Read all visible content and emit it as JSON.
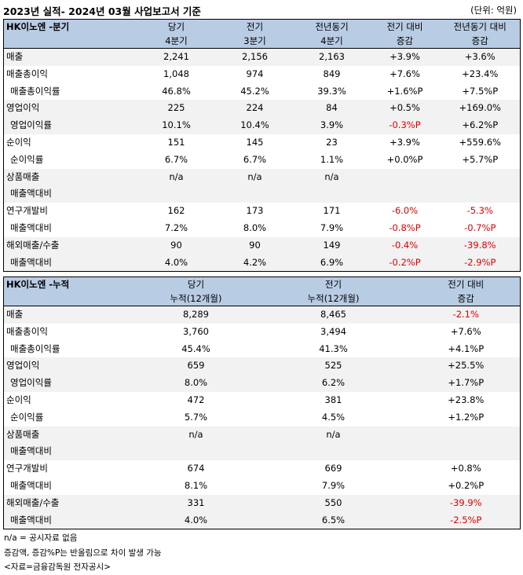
{
  "header": {
    "title": "2023년 실적- 2024년 03월 사업보고서 기준",
    "unit": "(단위: 억원)"
  },
  "quarterly": {
    "label": "HK이노엔 -분기",
    "columns": [
      {
        "line1": "당기",
        "line2": "4분기"
      },
      {
        "line1": "전기",
        "line2": "3분기"
      },
      {
        "line1": "전년동기",
        "line2": "4분기"
      },
      {
        "line1": "전기 대비",
        "line2": "증감"
      },
      {
        "line1": "전년동기 대비",
        "line2": "증감"
      }
    ],
    "rows": [
      {
        "label": "매출",
        "sub": false,
        "cells": [
          "2,241",
          "2,156",
          "2,163",
          "+3.9%",
          "+3.6%"
        ],
        "neg": [
          false,
          false,
          false,
          false,
          false
        ]
      },
      {
        "label": "매출총이익",
        "sub": false,
        "cells": [
          "1,048",
          "974",
          "849",
          "+7.6%",
          "+23.4%"
        ],
        "neg": [
          false,
          false,
          false,
          false,
          false
        ]
      },
      {
        "label": "매출총이익률",
        "sub": true,
        "cells": [
          "46.8%",
          "45.2%",
          "39.3%",
          "+1.6%P",
          "+7.5%P"
        ],
        "neg": [
          false,
          false,
          false,
          false,
          false
        ]
      },
      {
        "label": "영업이익",
        "sub": false,
        "cells": [
          "225",
          "224",
          "84",
          "+0.5%",
          "+169.0%"
        ],
        "neg": [
          false,
          false,
          false,
          false,
          false
        ]
      },
      {
        "label": "영업이익률",
        "sub": true,
        "cells": [
          "10.1%",
          "10.4%",
          "3.9%",
          "-0.3%P",
          "+6.2%P"
        ],
        "neg": [
          false,
          false,
          false,
          true,
          false
        ]
      },
      {
        "label": "순이익",
        "sub": false,
        "cells": [
          "151",
          "145",
          "23",
          "+3.9%",
          "+559.6%"
        ],
        "neg": [
          false,
          false,
          false,
          false,
          false
        ]
      },
      {
        "label": "순이익률",
        "sub": true,
        "cells": [
          "6.7%",
          "6.7%",
          "1.1%",
          "+0.0%P",
          "+5.7%P"
        ],
        "neg": [
          false,
          false,
          false,
          false,
          false
        ]
      },
      {
        "label": "상품매출",
        "sub": false,
        "cells": [
          "n/a",
          "n/a",
          "n/a",
          "",
          ""
        ],
        "neg": [
          false,
          false,
          false,
          false,
          false
        ]
      },
      {
        "label": "매출액대비",
        "sub": true,
        "cells": [
          "",
          "",
          "",
          "",
          ""
        ],
        "neg": [
          false,
          false,
          false,
          false,
          false
        ]
      },
      {
        "label": "연구개발비",
        "sub": false,
        "cells": [
          "162",
          "173",
          "171",
          "-6.0%",
          "-5.3%"
        ],
        "neg": [
          false,
          false,
          false,
          true,
          true
        ]
      },
      {
        "label": "매출액대비",
        "sub": true,
        "cells": [
          "7.2%",
          "8.0%",
          "7.9%",
          "-0.8%P",
          "-0.7%P"
        ],
        "neg": [
          false,
          false,
          false,
          true,
          true
        ]
      },
      {
        "label": "해외매출/수출",
        "sub": false,
        "cells": [
          "90",
          "90",
          "149",
          "-0.4%",
          "-39.8%"
        ],
        "neg": [
          false,
          false,
          false,
          true,
          true
        ]
      },
      {
        "label": "매출액대비",
        "sub": true,
        "cells": [
          "4.0%",
          "4.2%",
          "6.9%",
          "-0.2%P",
          "-2.9%P"
        ],
        "neg": [
          false,
          false,
          false,
          true,
          true
        ]
      }
    ]
  },
  "cumulative": {
    "label": "HK이노엔 -누적",
    "columns": [
      {
        "line1": "당기",
        "line2": "누적(12개월)"
      },
      {
        "line1": "전기",
        "line2": "누적(12개월)"
      },
      {
        "line1": "전기 대비",
        "line2": "증감"
      }
    ],
    "rows": [
      {
        "label": "매출",
        "sub": false,
        "cells": [
          "8,289",
          "8,465",
          "-2.1%"
        ],
        "neg": [
          false,
          false,
          true
        ]
      },
      {
        "label": "매출총이익",
        "sub": false,
        "cells": [
          "3,760",
          "3,494",
          "+7.6%"
        ],
        "neg": [
          false,
          false,
          false
        ]
      },
      {
        "label": "매출총이익률",
        "sub": true,
        "cells": [
          "45.4%",
          "41.3%",
          "+4.1%P"
        ],
        "neg": [
          false,
          false,
          false
        ]
      },
      {
        "label": "영업이익",
        "sub": false,
        "cells": [
          "659",
          "525",
          "+25.5%"
        ],
        "neg": [
          false,
          false,
          false
        ]
      },
      {
        "label": "영업이익률",
        "sub": true,
        "cells": [
          "8.0%",
          "6.2%",
          "+1.7%P"
        ],
        "neg": [
          false,
          false,
          false
        ]
      },
      {
        "label": "순이익",
        "sub": false,
        "cells": [
          "472",
          "381",
          "+23.8%"
        ],
        "neg": [
          false,
          false,
          false
        ]
      },
      {
        "label": "순이익률",
        "sub": true,
        "cells": [
          "5.7%",
          "4.5%",
          "+1.2%P"
        ],
        "neg": [
          false,
          false,
          false
        ]
      },
      {
        "label": "상품매출",
        "sub": false,
        "cells": [
          "n/a",
          "n/a",
          ""
        ],
        "neg": [
          false,
          false,
          false
        ]
      },
      {
        "label": "매출액대비",
        "sub": true,
        "cells": [
          "",
          "",
          ""
        ],
        "neg": [
          false,
          false,
          false
        ]
      },
      {
        "label": "연구개발비",
        "sub": false,
        "cells": [
          "674",
          "669",
          "+0.8%"
        ],
        "neg": [
          false,
          false,
          false
        ]
      },
      {
        "label": "매출액대비",
        "sub": true,
        "cells": [
          "8.1%",
          "7.9%",
          "+0.2%P"
        ],
        "neg": [
          false,
          false,
          false
        ]
      },
      {
        "label": "해외매출/수출",
        "sub": false,
        "cells": [
          "331",
          "550",
          "-39.9%"
        ],
        "neg": [
          false,
          false,
          true
        ]
      },
      {
        "label": "매출액대비",
        "sub": true,
        "cells": [
          "4.0%",
          "6.5%",
          "-2.5%P"
        ],
        "neg": [
          false,
          false,
          true
        ]
      }
    ]
  },
  "notes": [
    "n/a = 공시자료 없음",
    "증감액, 증감%P는 반올림으로 차이 발생 가능",
    "<자료=금융감독원 전자공시>"
  ],
  "colors": {
    "header_bg": "#b8cce4",
    "band_bg": "#f2f2f2",
    "negative": "#e00000"
  }
}
